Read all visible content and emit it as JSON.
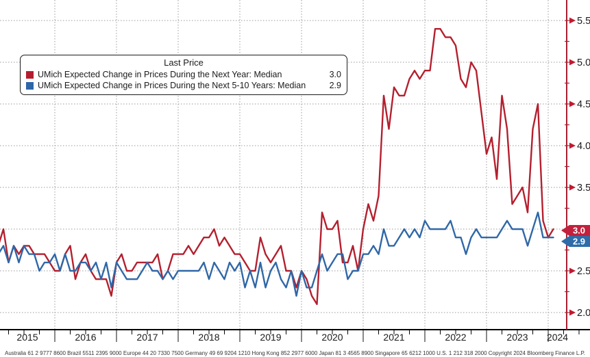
{
  "legend": {
    "title": "Last Price",
    "items": [
      {
        "label": "UMich Expected Change in Prices During the Next Year: Median",
        "value": "3.0",
        "color": "#b51d2f"
      },
      {
        "label": "UMich Expected Change in Prices During the Next 5-10 Years: Median",
        "value": "2.9",
        "color": "#2f66a7"
      }
    ]
  },
  "footer": "Australia 61 2 9777 8600 Brazil 5511 2395 9000 Europe 44 20 7330 7500 Germany 49 69 9204 1210 Hong Kong 852 2977 6000 Japan 81 3 4565 8900 Singapore 65 6212 1000 U.S. 1 212 318 2000 Copyright 2024 Bloomberg Finance L.P.",
  "chart_data": {
    "type": "line",
    "title": "Last Price",
    "frequency": "monthly",
    "x_start": "2015-01",
    "x_end": "2024-02",
    "x_year_labels": [
      "2015",
      "2016",
      "2017",
      "2018",
      "2019",
      "2020",
      "2021",
      "2022",
      "2023",
      "2024"
    ],
    "y_ticks": [
      2.0,
      2.5,
      3.0,
      3.5,
      4.0,
      4.5,
      5.0,
      5.5
    ],
    "y_minor_step": 0.25,
    "ylim": [
      1.8,
      5.75
    ],
    "grid": "dotted",
    "legend_position": "top-left",
    "colors": {
      "red_line": "#b41f2e",
      "blue_line": "#2f67a7",
      "badge_red": "#c2203c",
      "badge_blue": "#2e6ca9",
      "y_axis": "#a51e30",
      "x_axis": "#000000",
      "gridline": "#9a9a9a",
      "tick_label": "#1a1a1a"
    },
    "series": [
      {
        "name": "UMich Expected Change in Prices During the Next Year: Median",
        "color": "#b41f2e",
        "last_price": "3.0",
        "values": [
          2.5,
          2.8,
          3.0,
          2.6,
          2.8,
          2.7,
          2.8,
          2.8,
          2.7,
          2.7,
          2.7,
          2.6,
          2.5,
          2.5,
          2.7,
          2.8,
          2.4,
          2.6,
          2.7,
          2.5,
          2.4,
          2.4,
          2.4,
          2.2,
          2.6,
          2.7,
          2.5,
          2.5,
          2.6,
          2.6,
          2.6,
          2.6,
          2.7,
          2.4,
          2.5,
          2.7,
          2.7,
          2.7,
          2.8,
          2.7,
          2.8,
          2.9,
          2.9,
          3.0,
          2.8,
          2.9,
          2.8,
          2.7,
          2.7,
          2.6,
          2.5,
          2.5,
          2.9,
          2.7,
          2.6,
          2.7,
          2.8,
          2.5,
          2.5,
          2.3,
          2.5,
          2.4,
          2.2,
          2.1,
          3.2,
          3.0,
          3.0,
          3.1,
          2.6,
          2.6,
          2.8,
          2.5,
          3.0,
          3.3,
          3.1,
          3.4,
          4.6,
          4.2,
          4.7,
          4.6,
          4.6,
          4.8,
          4.9,
          4.8,
          4.9,
          4.9,
          5.4,
          5.4,
          5.3,
          5.3,
          5.2,
          4.8,
          4.7,
          5.0,
          4.9,
          4.4,
          3.9,
          4.1,
          3.6,
          4.6,
          4.2,
          3.3,
          3.4,
          3.5,
          3.2,
          4.2,
          4.5,
          3.1,
          2.9,
          3.0
        ]
      },
      {
        "name": "UMich Expected Change in Prices During the Next 5-10 Years: Median",
        "color": "#2f67a7",
        "last_price": "2.9",
        "values": [
          2.8,
          2.7,
          2.8,
          2.6,
          2.8,
          2.6,
          2.8,
          2.7,
          2.7,
          2.5,
          2.6,
          2.6,
          2.7,
          2.5,
          2.7,
          2.5,
          2.5,
          2.6,
          2.6,
          2.5,
          2.6,
          2.4,
          2.6,
          2.3,
          2.6,
          2.5,
          2.4,
          2.4,
          2.4,
          2.5,
          2.6,
          2.5,
          2.5,
          2.4,
          2.5,
          2.4,
          2.5,
          2.5,
          2.5,
          2.5,
          2.5,
          2.6,
          2.4,
          2.6,
          2.5,
          2.4,
          2.6,
          2.5,
          2.6,
          2.3,
          2.5,
          2.3,
          2.6,
          2.3,
          2.5,
          2.6,
          2.4,
          2.3,
          2.5,
          2.2,
          2.5,
          2.3,
          2.3,
          2.5,
          2.7,
          2.5,
          2.6,
          2.7,
          2.7,
          2.4,
          2.5,
          2.5,
          2.7,
          2.7,
          2.8,
          2.7,
          3.0,
          2.8,
          2.8,
          2.9,
          3.0,
          2.9,
          3.0,
          2.9,
          3.1,
          3.0,
          3.0,
          3.0,
          3.0,
          3.1,
          2.9,
          2.9,
          2.7,
          2.9,
          3.0,
          2.9,
          2.9,
          2.9,
          2.9,
          3.0,
          3.1,
          3.0,
          3.0,
          3.0,
          2.8,
          3.0,
          3.2,
          2.9,
          2.9,
          2.9
        ]
      }
    ]
  }
}
